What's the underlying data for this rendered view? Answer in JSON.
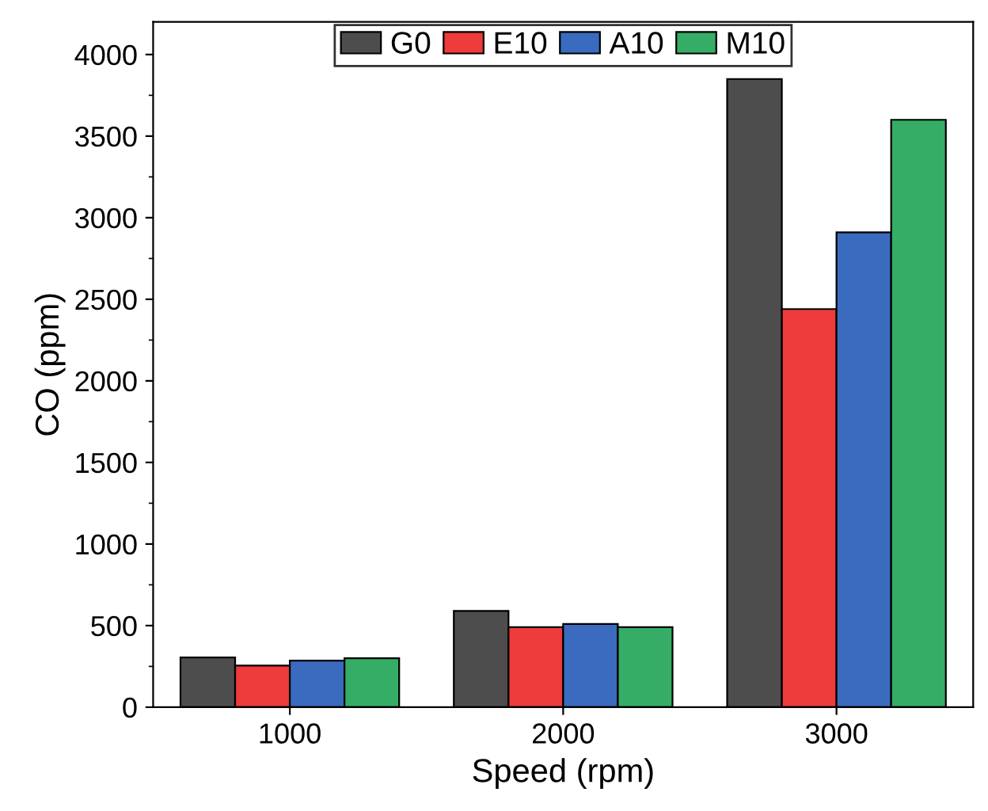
{
  "chart_data": {
    "type": "bar",
    "xlabel": "Speed (rpm)",
    "ylabel": "CO (ppm)",
    "categories": [
      "1000",
      "2000",
      "3000"
    ],
    "series": [
      {
        "name": "G0",
        "color": "#4d4d4d",
        "values": [
          305,
          590,
          3850
        ]
      },
      {
        "name": "E10",
        "color": "#ee3b3b",
        "values": [
          255,
          490,
          2440
        ]
      },
      {
        "name": "A10",
        "color": "#3a6bbf",
        "values": [
          285,
          510,
          2910
        ]
      },
      {
        "name": "M10",
        "color": "#35ad66",
        "values": [
          300,
          490,
          3600
        ]
      }
    ],
    "ylim": [
      0,
      4200
    ],
    "yticks": [
      0,
      500,
      1000,
      1500,
      2000,
      2500,
      3000,
      3500,
      4000
    ],
    "grid": false,
    "legend": "top"
  }
}
